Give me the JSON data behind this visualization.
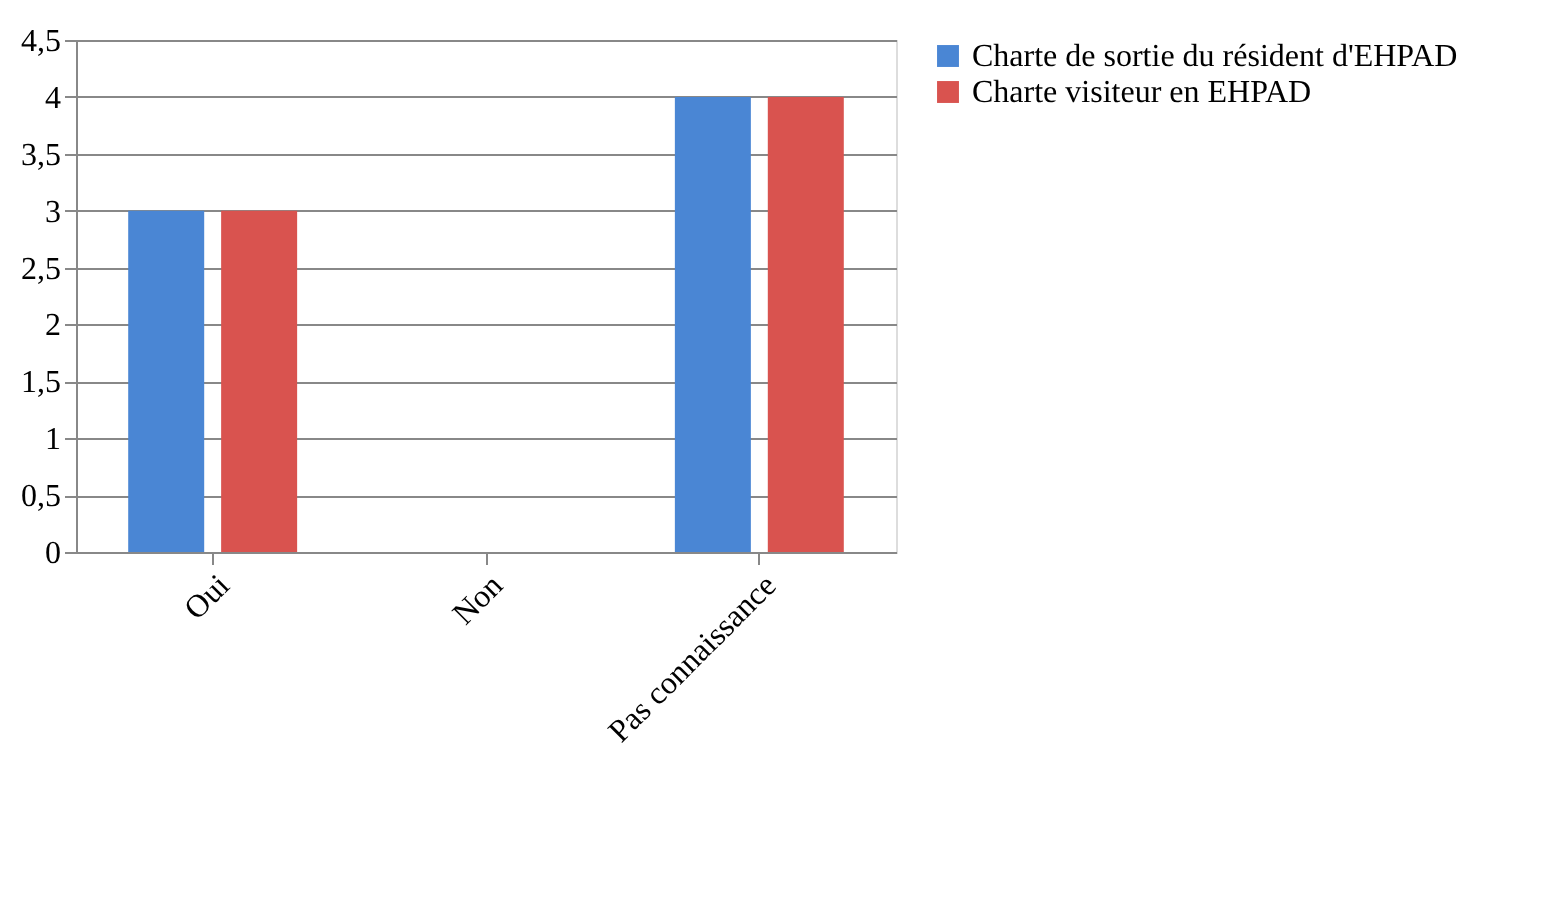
{
  "chart_data": {
    "type": "bar",
    "categories": [
      "Oui",
      "Non",
      "Pas connaissance"
    ],
    "series": [
      {
        "name": "Charte de sortie du résident d'EHPAD",
        "color": "#4a86d4",
        "values": [
          3,
          0,
          4
        ]
      },
      {
        "name": "Charte visiteur en EHPAD",
        "color": "#d9534f",
        "values": [
          3,
          0,
          4
        ]
      }
    ],
    "ylim": [
      0,
      4.5
    ],
    "yticks": [
      0,
      {
        "value": 0.5,
        "label": "0,5"
      },
      1,
      {
        "value": 1.5,
        "label": "1,5"
      },
      2,
      {
        "value": 2.5,
        "label": "2,5"
      },
      3,
      {
        "value": 3.5,
        "label": "3,5"
      },
      4,
      {
        "value": 4.5,
        "label": "4,5"
      }
    ],
    "grid": "y",
    "legend": "right"
  }
}
